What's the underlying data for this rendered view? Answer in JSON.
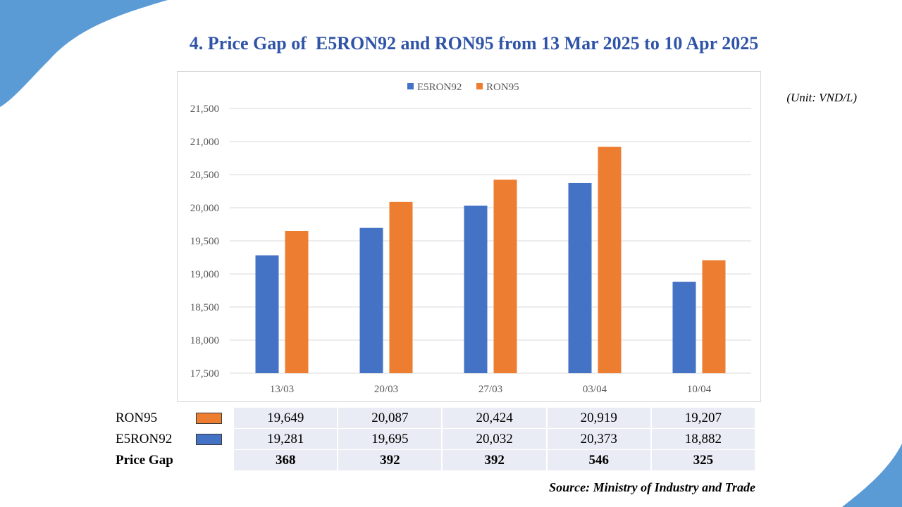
{
  "title": "4. Price Gap of  E5RON92 and RON95 from 13 Mar 2025 to 10 Apr 2025",
  "unit": "(Unit: VND/L)",
  "source": "Source: Ministry of Industry and Trade",
  "colors": {
    "e5ron92": "#4472c4",
    "ron95": "#ed7d31",
    "title": "#2f54a7",
    "decor": "#5b9bd5"
  },
  "chart_data": {
    "type": "bar",
    "categories": [
      "13/03",
      "20/03",
      "27/03",
      "03/04",
      "10/04"
    ],
    "series": [
      {
        "name": "E5RON92",
        "values": [
          19281,
          19695,
          20032,
          20373,
          18882
        ]
      },
      {
        "name": "RON95",
        "values": [
          19649,
          20087,
          20424,
          20919,
          19207
        ]
      }
    ],
    "ylim": [
      17500,
      21500
    ],
    "yticks": [
      17500,
      18000,
      18500,
      19000,
      19500,
      20000,
      20500,
      21000,
      21500
    ],
    "ytick_labels": [
      "17,500",
      "18,000",
      "18,500",
      "19,000",
      "19,500",
      "20,000",
      "20,500",
      "21,000",
      "21,500"
    ],
    "legend": "top-center",
    "grid": true
  },
  "table": {
    "rows": [
      {
        "label": "RON95",
        "values": [
          "19,649",
          "20,087",
          "20,424",
          "20,919",
          "19,207"
        ]
      },
      {
        "label": "E5RON92",
        "values": [
          "19,281",
          "19,695",
          "20,032",
          "20,373",
          "18,882"
        ]
      },
      {
        "label": "Price Gap",
        "values": [
          "368",
          "392",
          "392",
          "546",
          "325"
        ]
      }
    ]
  }
}
